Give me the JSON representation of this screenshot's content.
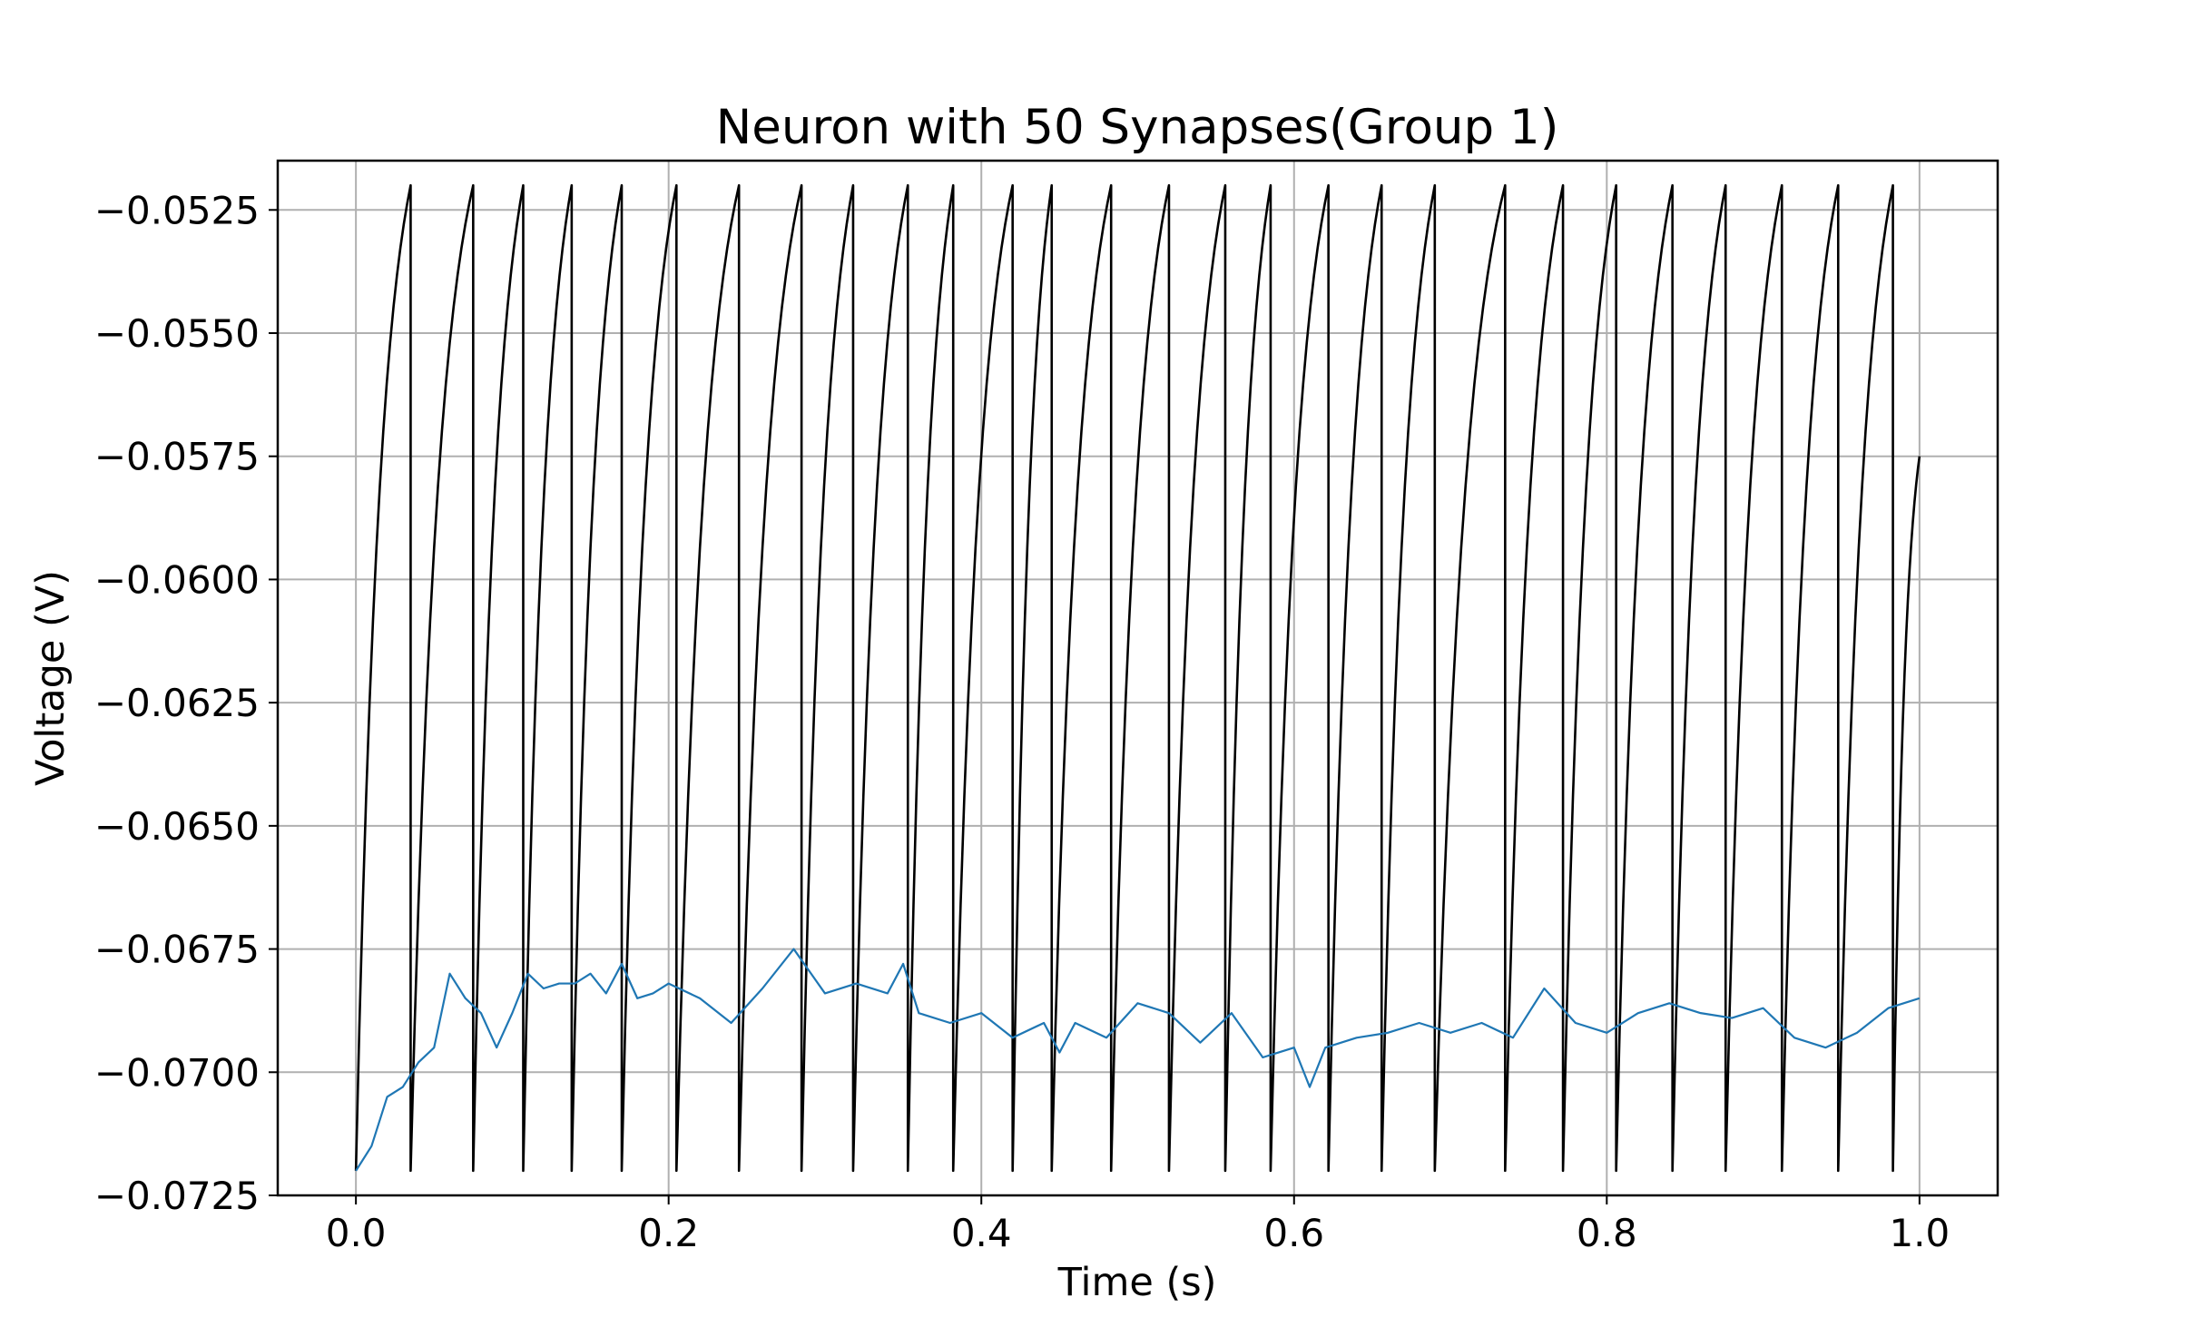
{
  "chart_data": {
    "type": "line",
    "title": "Neuron with 50 Synapses(Group 1)",
    "xlabel": "Time (s)",
    "ylabel": "Voltage (V)",
    "xlim": [
      -0.05,
      1.05
    ],
    "ylim": [
      -0.0725,
      -0.0515
    ],
    "xticks": [
      0.0,
      0.2,
      0.4,
      0.6,
      0.8,
      1.0
    ],
    "xtick_labels": [
      "0.0",
      "0.2",
      "0.4",
      "0.6",
      "0.8",
      "1.0"
    ],
    "yticks": [
      -0.0525,
      -0.055,
      -0.0575,
      -0.06,
      -0.0625,
      -0.065,
      -0.0675,
      -0.07,
      -0.0725
    ],
    "ytick_labels": [
      "−0.0525",
      "−0.0550",
      "−0.0575",
      "−0.0600",
      "−0.0625",
      "−0.0650",
      "−0.0675",
      "−0.0700",
      "−0.0725"
    ],
    "grid": true,
    "legend": "none",
    "series": [
      {
        "color": "#000000",
        "style": "spike-train",
        "reset_voltage": -0.072,
        "threshold_voltage": -0.052,
        "spike_times": [
          0.035,
          0.075,
          0.107,
          0.138,
          0.17,
          0.205,
          0.245,
          0.285,
          0.318,
          0.353,
          0.382,
          0.42,
          0.445,
          0.483,
          0.52,
          0.556,
          0.585,
          0.622,
          0.656,
          0.69,
          0.735,
          0.772,
          0.806,
          0.842,
          0.876,
          0.912,
          0.948,
          0.983
        ],
        "end": {
          "x": 1.0,
          "y": -0.0575
        }
      },
      {
        "color": "#1f77b4",
        "style": "line",
        "x": [
          0.0,
          0.01,
          0.02,
          0.03,
          0.04,
          0.05,
          0.06,
          0.07,
          0.08,
          0.09,
          0.1,
          0.11,
          0.12,
          0.13,
          0.14,
          0.15,
          0.16,
          0.17,
          0.18,
          0.19,
          0.2,
          0.22,
          0.24,
          0.26,
          0.28,
          0.3,
          0.32,
          0.34,
          0.35,
          0.36,
          0.38,
          0.4,
          0.42,
          0.44,
          0.45,
          0.46,
          0.48,
          0.5,
          0.52,
          0.54,
          0.56,
          0.58,
          0.6,
          0.61,
          0.62,
          0.64,
          0.66,
          0.68,
          0.7,
          0.72,
          0.74,
          0.76,
          0.78,
          0.8,
          0.82,
          0.84,
          0.86,
          0.88,
          0.9,
          0.92,
          0.94,
          0.96,
          0.98,
          1.0
        ],
        "y": [
          -0.072,
          -0.0715,
          -0.0705,
          -0.0703,
          -0.0698,
          -0.0695,
          -0.068,
          -0.0685,
          -0.0688,
          -0.0695,
          -0.0688,
          -0.068,
          -0.0683,
          -0.0682,
          -0.0682,
          -0.068,
          -0.0684,
          -0.0678,
          -0.0685,
          -0.0684,
          -0.0682,
          -0.0685,
          -0.069,
          -0.0683,
          -0.0675,
          -0.0684,
          -0.0682,
          -0.0684,
          -0.0678,
          -0.0688,
          -0.069,
          -0.0688,
          -0.0693,
          -0.069,
          -0.0696,
          -0.069,
          -0.0693,
          -0.0686,
          -0.0688,
          -0.0694,
          -0.0688,
          -0.0697,
          -0.0695,
          -0.0703,
          -0.0695,
          -0.0693,
          -0.0692,
          -0.069,
          -0.0692,
          -0.069,
          -0.0693,
          -0.0683,
          -0.069,
          -0.0692,
          -0.0688,
          -0.0686,
          -0.0688,
          -0.0689,
          -0.0687,
          -0.0693,
          -0.0695,
          -0.0692,
          -0.0687,
          -0.0685
        ]
      }
    ]
  }
}
